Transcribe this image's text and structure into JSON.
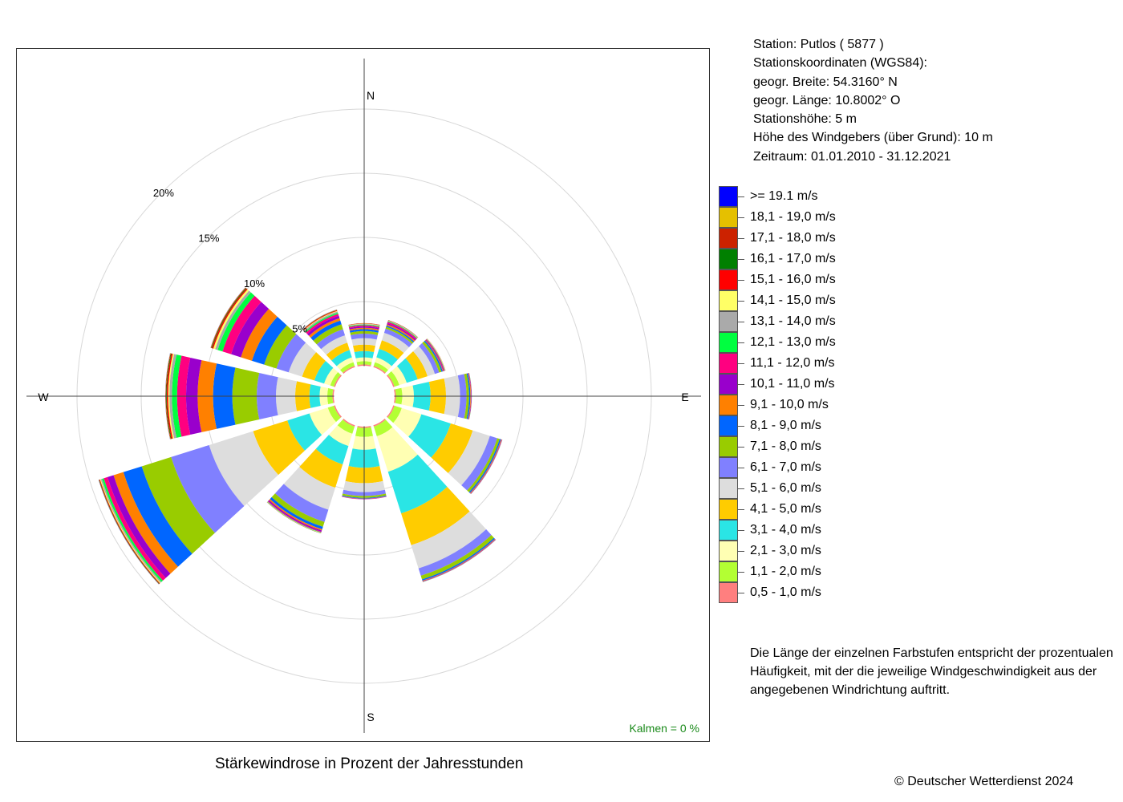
{
  "chart_data": {
    "type": "windrose",
    "title": "Stärkewindrose in Prozent der Jahresstunden",
    "directions": [
      {
        "label": "N",
        "angle": 0
      },
      {
        "label": "E",
        "angle": 90
      },
      {
        "label": "S",
        "angle": 180
      },
      {
        "label": "W",
        "angle": 270
      }
    ],
    "rings": [
      {
        "value": 5,
        "label": "5%"
      },
      {
        "value": 10,
        "label": "10%"
      },
      {
        "value": 15,
        "label": "15%"
      },
      {
        "value": 20,
        "label": "20%"
      }
    ],
    "calm_label": "Kalmen  =  0 %",
    "classes": [
      {
        "label": "0,5 - 1,0 m/s",
        "color": "#ff7f7f"
      },
      {
        "label": "1,1 - 2,0 m/s",
        "color": "#b3ff33"
      },
      {
        "label": "2,1 - 3,0 m/s",
        "color": "#ffffb3"
      },
      {
        "label": "3,1 - 4,0 m/s",
        "color": "#2ae5e5"
      },
      {
        "label": "4,1 - 5,0 m/s",
        "color": "#ffcc00"
      },
      {
        "label": "5,1 - 6,0 m/s",
        "color": "#dddddd"
      },
      {
        "label": "6,1 - 7,0 m/s",
        "color": "#8080ff"
      },
      {
        "label": "7,1 - 8,0 m/s",
        "color": "#99cc00"
      },
      {
        "label": "8,1 - 9,0 m/s",
        "color": "#0066ff"
      },
      {
        "label": "9,1 - 10,0 m/s",
        "color": "#ff8000"
      },
      {
        "label": "10,1 - 11,0 m/s",
        "color": "#9900cc"
      },
      {
        "label": "11,1 - 12,0 m/s",
        "color": "#ff0080"
      },
      {
        "label": "12,1 - 13,0 m/s",
        "color": "#00ff40"
      },
      {
        "label": "13,1 - 14,0 m/s",
        "color": "#aaaaaa"
      },
      {
        "label": "14,1 - 15,0 m/s",
        "color": "#ffff66"
      },
      {
        "label": "15,1 - 16,0 m/s",
        "color": "#ff0000"
      },
      {
        "label": "16,1 - 17,0 m/s",
        "color": "#008000"
      },
      {
        "label": "17,1 - 18,0 m/s",
        "color": "#cc2200"
      },
      {
        "label": "18,1 - 19,0 m/s",
        "color": "#e5c000"
      },
      {
        "label": ">= 19.1 m/s",
        "color": "#0000ff"
      }
    ],
    "sectors": [
      {
        "angle": 0,
        "values": [
          0.1,
          0.25,
          0.3,
          0.5,
          0.5,
          0.5,
          0.35,
          0.2,
          0.15,
          0.1,
          0.1,
          0.1,
          0.05,
          0.05,
          0.03,
          0.02,
          0.01,
          0.01,
          0,
          0
        ]
      },
      {
        "angle": 30,
        "values": [
          0.1,
          0.3,
          0.4,
          0.7,
          0.7,
          0.6,
          0.35,
          0.15,
          0.1,
          0.1,
          0.1,
          0.1,
          0.05,
          0.05,
          0.02,
          0.02,
          0.01,
          0,
          0,
          0
        ]
      },
      {
        "angle": 60,
        "values": [
          0.1,
          0.4,
          0.6,
          0.9,
          0.8,
          0.6,
          0.35,
          0.2,
          0.1,
          0.05,
          0.05,
          0.05,
          0.03,
          0.02,
          0.02,
          0.01,
          0,
          0,
          0,
          0
        ]
      },
      {
        "angle": 90,
        "values": [
          0.1,
          0.5,
          0.9,
          1.3,
          1.2,
          1.1,
          0.5,
          0.2,
          0.1,
          0.05,
          0.03,
          0.02,
          0.01,
          0,
          0,
          0,
          0,
          0,
          0,
          0
        ]
      },
      {
        "angle": 120,
        "values": [
          0.1,
          0.6,
          1.6,
          2.4,
          1.8,
          1.4,
          0.6,
          0.2,
          0.1,
          0.05,
          0.03,
          0.02,
          0.01,
          0.01,
          0,
          0,
          0,
          0,
          0,
          0
        ]
      },
      {
        "angle": 150,
        "values": [
          0.1,
          0.8,
          2.9,
          3.4,
          2.6,
          1.9,
          0.6,
          0.3,
          0.1,
          0.05,
          0.03,
          0.02,
          0.01,
          0.01,
          0,
          0,
          0,
          0,
          0,
          0
        ]
      },
      {
        "angle": 180,
        "values": [
          0.1,
          0.7,
          1.0,
          1.4,
          1.2,
          0.7,
          0.3,
          0.15,
          0.05,
          0.03,
          0.02,
          0.01,
          0,
          0,
          0,
          0,
          0,
          0,
          0,
          0
        ]
      },
      {
        "angle": 210,
        "values": [
          0.1,
          0.6,
          1.0,
          1.5,
          1.9,
          1.8,
          1.0,
          0.4,
          0.2,
          0.1,
          0.1,
          0.05,
          0.03,
          0.02,
          0.02,
          0.01,
          0.01,
          0,
          0,
          0
        ]
      },
      {
        "angle": 240,
        "values": [
          0.1,
          0.5,
          1.5,
          1.8,
          2.8,
          3.6,
          3.1,
          2.4,
          1.5,
          0.8,
          0.5,
          0.3,
          0.15,
          0.1,
          0.06,
          0.05,
          0.03,
          0.02,
          0.01,
          0.01
        ]
      },
      {
        "angle": 270,
        "values": [
          0.1,
          0.4,
          0.6,
          0.8,
          1.1,
          1.5,
          1.5,
          1.9,
          1.5,
          1.2,
          0.9,
          0.7,
          0.4,
          0.2,
          0.1,
          0.1,
          0.05,
          0.04,
          0.02,
          0.01
        ]
      },
      {
        "angle": 300,
        "values": [
          0.1,
          0.3,
          0.5,
          0.8,
          1.0,
          1.1,
          1.0,
          1.0,
          1.0,
          0.9,
          0.8,
          0.7,
          0.4,
          0.2,
          0.15,
          0.1,
          0.05,
          0.05,
          0.02,
          0.01
        ]
      },
      {
        "angle": 330,
        "values": [
          0.1,
          0.3,
          0.4,
          0.6,
          0.6,
          0.6,
          0.5,
          0.4,
          0.3,
          0.2,
          0.2,
          0.15,
          0.1,
          0.1,
          0.05,
          0.05,
          0.02,
          0.02,
          0.01,
          0.01
        ]
      }
    ]
  },
  "station_info": [
    "Station:  Putlos  ( 5877 )",
    "Stationskoordinaten (WGS84):",
    "geogr. Breite: 54.3160° N",
    "geogr. Länge: 10.8002° O",
    "Stationshöhe: 5 m",
    "Höhe des Windgebers (über Grund): 10 m",
    "Zeitraum: 01.01.2010 - 31.12.2021"
  ],
  "note_lines": [
    "Die Länge der einzelnen Farbstufen entspricht der prozentualen",
    "Häufigkeit, mit der die jeweilige Windgeschwindigkeit aus der",
    "angegebenen Windrichtung auftritt."
  ],
  "copyright": "© Deutscher Wetterdienst  2024"
}
